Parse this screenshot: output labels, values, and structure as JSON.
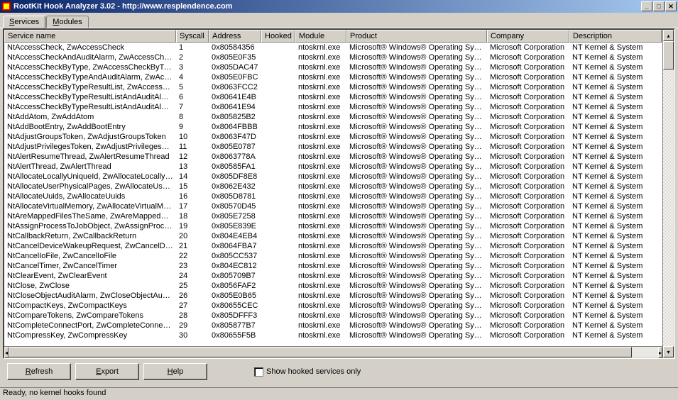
{
  "window": {
    "title": "RootKit Hook Analyzer 3.02 - http://www.resplendence.com"
  },
  "tabs": [
    {
      "label": "Services",
      "accel": "S",
      "active": true
    },
    {
      "label": "Modules",
      "accel": "M",
      "active": false
    }
  ],
  "columns": [
    "Service name",
    "Syscall",
    "Address",
    "Hooked",
    "Module",
    "Product",
    "Company",
    "Description"
  ],
  "rows": [
    {
      "name": "NtAccessCheck, ZwAccessCheck",
      "sys": "1",
      "addr": "0x80584356"
    },
    {
      "name": "NtAccessCheckAndAuditAlarm, ZwAccessCheck...",
      "sys": "2",
      "addr": "0x805E0F35"
    },
    {
      "name": "NtAccessCheckByType, ZwAccessCheckByType",
      "sys": "3",
      "addr": "0x805DAC47"
    },
    {
      "name": "NtAccessCheckByTypeAndAuditAlarm, ZwAcces...",
      "sys": "4",
      "addr": "0x805E0FBC"
    },
    {
      "name": "NtAccessCheckByTypeResultList, ZwAccessChe...",
      "sys": "5",
      "addr": "0x8063FCC2"
    },
    {
      "name": "NtAccessCheckByTypeResultListAndAuditAlarm, ...",
      "sys": "6",
      "addr": "0x80641E4B"
    },
    {
      "name": "NtAccessCheckByTypeResultListAndAuditAlarmB...",
      "sys": "7",
      "addr": "0x80641E94"
    },
    {
      "name": "NtAddAtom, ZwAddAtom",
      "sys": "8",
      "addr": "0x805825B2"
    },
    {
      "name": "NtAddBootEntry, ZwAddBootEntry",
      "sys": "9",
      "addr": "0x8064FBBB"
    },
    {
      "name": "NtAdjustGroupsToken, ZwAdjustGroupsToken",
      "sys": "10",
      "addr": "0x8063F47D"
    },
    {
      "name": "NtAdjustPrivilegesToken, ZwAdjustPrivilegesToken",
      "sys": "11",
      "addr": "0x805E0787"
    },
    {
      "name": "NtAlertResumeThread, ZwAlertResumeThread",
      "sys": "12",
      "addr": "0x8063778A"
    },
    {
      "name": "NtAlertThread, ZwAlertThread",
      "sys": "13",
      "addr": "0x80585FA1"
    },
    {
      "name": "NtAllocateLocallyUniqueId, ZwAllocateLocallyUni...",
      "sys": "14",
      "addr": "0x805DF8E8"
    },
    {
      "name": "NtAllocateUserPhysicalPages, ZwAllocateUserPh...",
      "sys": "15",
      "addr": "0x8062E432"
    },
    {
      "name": "NtAllocateUuids, ZwAllocateUuids",
      "sys": "16",
      "addr": "0x805D8781"
    },
    {
      "name": "NtAllocateVirtualMemory, ZwAllocateVirtualMemory",
      "sys": "17",
      "addr": "0x80570D45"
    },
    {
      "name": "NtAreMappedFilesTheSame, ZwAreMappedFiles...",
      "sys": "18",
      "addr": "0x805E7258"
    },
    {
      "name": "NtAssignProcessToJobObject, ZwAssignProces...",
      "sys": "19",
      "addr": "0x805E839E"
    },
    {
      "name": "NtCallbackReturn, ZwCallbackReturn",
      "sys": "20",
      "addr": "0x804E4EB4"
    },
    {
      "name": "NtCancelDeviceWakeupRequest, ZwCancelDev...",
      "sys": "21",
      "addr": "0x8064FBA7"
    },
    {
      "name": "NtCancelIoFile, ZwCancelIoFile",
      "sys": "22",
      "addr": "0x805CC537"
    },
    {
      "name": "NtCancelTimer, ZwCancelTimer",
      "sys": "23",
      "addr": "0x804EC812"
    },
    {
      "name": "NtClearEvent, ZwClearEvent",
      "sys": "24",
      "addr": "0x805709B7"
    },
    {
      "name": "NtClose, ZwClose",
      "sys": "25",
      "addr": "0x8056FAF2"
    },
    {
      "name": "NtCloseObjectAuditAlarm, ZwCloseObjectAuditAl...",
      "sys": "26",
      "addr": "0x805E0B65"
    },
    {
      "name": "NtCompactKeys, ZwCompactKeys",
      "sys": "27",
      "addr": "0x80655CEC"
    },
    {
      "name": "NtCompareTokens, ZwCompareTokens",
      "sys": "28",
      "addr": "0x805DFFF3"
    },
    {
      "name": "NtCompleteConnectPort, ZwCompleteConnectPort",
      "sys": "29",
      "addr": "0x805877B7"
    },
    {
      "name": "NtCompressKey, ZwCompressKey",
      "sys": "30",
      "addr": "0x80655F5B"
    }
  ],
  "common": {
    "hooked": "",
    "module": "ntoskrnl.exe",
    "product": "Microsoft® Windows® Operating System",
    "company": "Microsoft Corporation",
    "desc": "NT Kernel & System"
  },
  "buttons": {
    "refresh": "Refresh",
    "export": "Export",
    "help": "Help"
  },
  "checkbox": {
    "label": "Show hooked services only"
  },
  "status": "Ready, no kernel hooks found"
}
